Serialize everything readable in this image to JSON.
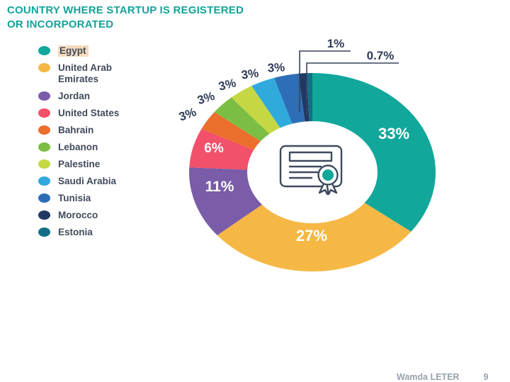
{
  "title": {
    "text": "COUNTRY WHERE STARTUP IS REGISTERED\nOR INCORPORATED",
    "color": "#14A29A"
  },
  "chart_data": {
    "type": "pie",
    "donut": true,
    "title": "COUNTRY WHERE STARTUP IS REGISTERED OR INCORPORATED",
    "legend_position": "left",
    "values_unit": "percent",
    "center_icon": "certificate-icon",
    "slices": [
      {
        "label": "Egypt",
        "value": 33,
        "display": "33%",
        "color": "#12A79B",
        "label_style": "inside-white",
        "legend_highlight": true
      },
      {
        "label": "United Arab Emirates",
        "value": 27,
        "display": "27%",
        "color": "#F6B845",
        "label_style": "inside-white"
      },
      {
        "label": "Jordan",
        "value": 11,
        "display": "11%",
        "color": "#7A5CA8",
        "label_style": "inside-white"
      },
      {
        "label": "United States",
        "value": 6,
        "display": "6%",
        "color": "#F2506B",
        "label_style": "inside-white"
      },
      {
        "label": "Bahrain",
        "value": 3,
        "display": "3%",
        "color": "#EC6E2D",
        "label_style": "outside-dark"
      },
      {
        "label": "Lebanon",
        "value": 3,
        "display": "3%",
        "color": "#7CBE44",
        "label_style": "outside-dark"
      },
      {
        "label": "Palestine",
        "value": 3,
        "display": "3%",
        "color": "#C5D844",
        "label_style": "outside-dark"
      },
      {
        "label": "Saudi Arabia",
        "value": 3,
        "display": "3%",
        "color": "#30A9DC",
        "label_style": "outside-dark"
      },
      {
        "label": "Tunisia",
        "value": 3,
        "display": "3%",
        "color": "#2E6EB6",
        "label_style": "outside-dark"
      },
      {
        "label": "Morocco",
        "value": 1,
        "display": "1%",
        "color": "#203864",
        "label_style": "callout"
      },
      {
        "label": "Estonia",
        "value": 0.7,
        "display": "0.7%",
        "color": "#146F86",
        "label_style": "callout"
      }
    ]
  },
  "footer": {
    "text": "Wamda LETER",
    "page_number": "9"
  }
}
